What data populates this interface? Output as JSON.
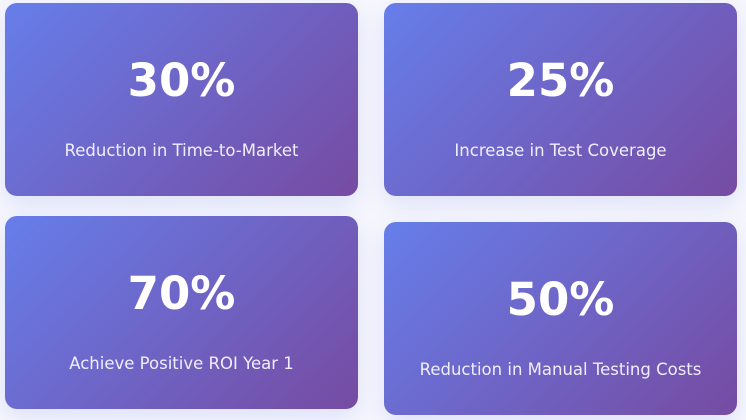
{
  "colors": {
    "gradient_start": "#667eea",
    "gradient_end": "#764ba2",
    "background": "#f7f7fd"
  },
  "stats": [
    {
      "value": "30%",
      "label": "Reduction in Time-to-Market"
    },
    {
      "value": "25%",
      "label": "Increase in Test Coverage"
    },
    {
      "value": "70%",
      "label": "Achieve Positive ROI Year 1"
    },
    {
      "value": "50%",
      "label": "Reduction in Manual Testing Costs"
    }
  ]
}
